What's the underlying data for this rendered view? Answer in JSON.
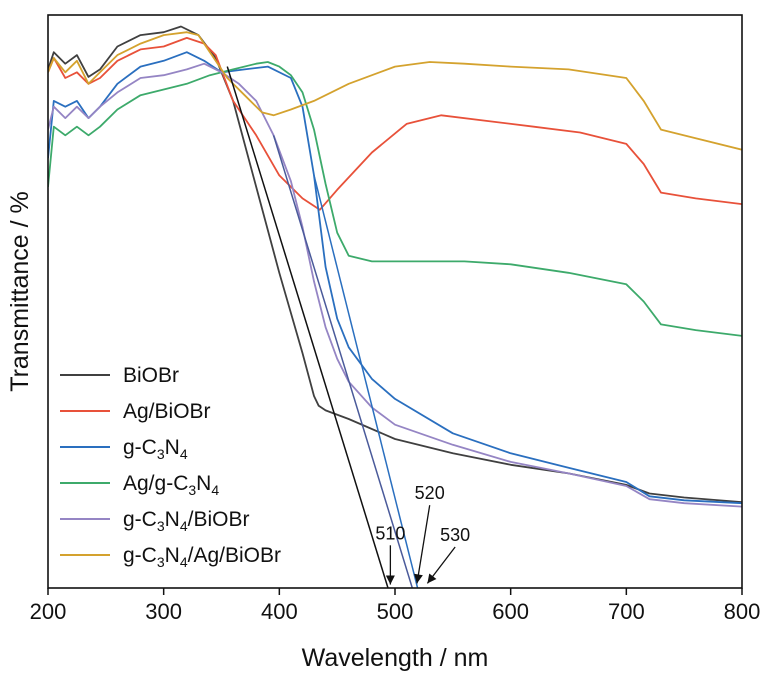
{
  "chart_data": {
    "type": "line",
    "title": "",
    "xlabel": "Wavelength / nm",
    "ylabel": "Transmittance / %",
    "xlim": [
      200,
      800
    ],
    "ylim": [
      0,
      100
    ],
    "xticks": [
      200,
      300,
      400,
      500,
      600,
      700,
      800
    ],
    "yticks_shown": false,
    "grid": false,
    "legend_position": "bottom-left",
    "series": [
      {
        "name": "BiOBr",
        "color": "#404040",
        "x": [
          200,
          205,
          215,
          225,
          235,
          245,
          260,
          280,
          300,
          315,
          330,
          345,
          360,
          380,
          400,
          420,
          430,
          434,
          440,
          460,
          500,
          550,
          600,
          650,
          700,
          720,
          750,
          800
        ],
        "y": [
          90.5,
          93.5,
          91.5,
          93.0,
          89.2,
          90.5,
          94.5,
          96.5,
          97.0,
          98.0,
          96.5,
          92.5,
          85.0,
          70.0,
          55.0,
          41.0,
          33.5,
          31.8,
          31.0,
          29.5,
          26.0,
          23.5,
          21.5,
          20.0,
          18.0,
          16.5,
          15.8,
          15.0
        ]
      },
      {
        "name": "Ag/BiOBr",
        "color": "#e8513a",
        "x": [
          200,
          205,
          215,
          225,
          235,
          245,
          260,
          280,
          300,
          320,
          335,
          345,
          360,
          380,
          400,
          420,
          435,
          450,
          480,
          510,
          540,
          580,
          620,
          660,
          700,
          715,
          730,
          760,
          800
        ],
        "y": [
          90.0,
          92.5,
          89.0,
          90.0,
          88.0,
          89.0,
          92.0,
          94.0,
          94.5,
          96.0,
          95.0,
          93.0,
          85.0,
          79.0,
          72.0,
          68.0,
          66.0,
          69.5,
          76.0,
          81.0,
          82.5,
          81.5,
          80.5,
          79.5,
          77.5,
          74.0,
          69.0,
          68.0,
          67.0
        ]
      },
      {
        "name": "g-C3N4",
        "color": "#2a6fbf",
        "x": [
          200,
          205,
          215,
          225,
          235,
          245,
          260,
          280,
          300,
          320,
          335,
          350,
          370,
          390,
          410,
          420,
          430,
          440,
          450,
          460,
          480,
          500,
          550,
          600,
          650,
          700,
          720,
          750,
          800
        ],
        "y": [
          75.0,
          85.0,
          84.0,
          85.0,
          82.0,
          84.0,
          88.0,
          91.0,
          92.0,
          93.5,
          92.0,
          90.0,
          90.5,
          91.0,
          89.0,
          84.0,
          72.0,
          56.0,
          47.0,
          42.0,
          36.5,
          33.0,
          27.0,
          23.5,
          21.0,
          18.5,
          16.0,
          15.3,
          14.8
        ]
      },
      {
        "name": "Ag/g-C3N4",
        "color": "#3daa6b",
        "x": [
          200,
          205,
          215,
          225,
          235,
          245,
          260,
          280,
          300,
          320,
          340,
          360,
          380,
          390,
          400,
          410,
          420,
          430,
          440,
          450,
          460,
          480,
          520,
          560,
          600,
          650,
          700,
          715,
          730,
          760,
          800
        ],
        "y": [
          70.0,
          80.5,
          79.0,
          80.5,
          79.0,
          80.5,
          83.5,
          86.0,
          87.0,
          88.0,
          89.5,
          90.5,
          91.5,
          91.8,
          91.0,
          89.5,
          86.5,
          80.0,
          70.5,
          62.0,
          58.0,
          57.0,
          57.0,
          57.0,
          56.5,
          55.0,
          53.0,
          50.0,
          46.0,
          45.0,
          44.0
        ]
      },
      {
        "name": "g-C3N4/BiOBr",
        "color": "#9585c4",
        "x": [
          200,
          205,
          215,
          225,
          235,
          245,
          260,
          280,
          300,
          320,
          335,
          350,
          365,
          380,
          395,
          410,
          420,
          430,
          440,
          450,
          460,
          480,
          500,
          550,
          600,
          650,
          700,
          720,
          750,
          800
        ],
        "y": [
          80.0,
          84.0,
          82.0,
          84.0,
          82.0,
          84.0,
          86.5,
          89.0,
          89.5,
          90.5,
          91.5,
          90.0,
          88.0,
          85.0,
          79.0,
          71.0,
          63.0,
          53.5,
          45.5,
          40.0,
          36.0,
          31.5,
          28.5,
          25.0,
          22.0,
          20.0,
          17.8,
          15.5,
          14.8,
          14.2
        ]
      },
      {
        "name": "g-C3N4/Ag/BiOBr",
        "color": "#d4a22e",
        "x": [
          200,
          205,
          215,
          225,
          235,
          245,
          260,
          280,
          300,
          320,
          330,
          340,
          355,
          370,
          385,
          395,
          410,
          430,
          460,
          500,
          530,
          560,
          600,
          650,
          700,
          715,
          730,
          760,
          800
        ],
        "y": [
          90.0,
          92.5,
          90.0,
          92.0,
          88.0,
          90.0,
          93.0,
          95.0,
          96.5,
          97.0,
          96.5,
          93.5,
          89.0,
          86.0,
          83.0,
          82.5,
          83.5,
          85.0,
          88.0,
          91.0,
          91.8,
          91.5,
          91.0,
          90.5,
          89.0,
          85.0,
          80.0,
          78.5,
          76.5
        ]
      }
    ],
    "tangent_lines": [
      {
        "series": "BiOBr",
        "from": [
          355,
          91.0
        ],
        "to": [
          497,
          -2.0
        ],
        "color": "#111111"
      },
      {
        "series": "g-C3N4/BiOBr",
        "from": [
          395,
          79.0
        ],
        "to": [
          518,
          -2.0
        ],
        "color": "#4a5a9a"
      },
      {
        "series": "g-C3N4",
        "from": [
          430,
          72.0
        ],
        "to": [
          522,
          -2.0
        ],
        "color": "#2a6fbf"
      }
    ],
    "annotations": [
      {
        "text": "510",
        "label_at": [
          496,
          8.5
        ],
        "arrow_to": [
          496,
          0.6
        ]
      },
      {
        "text": "520",
        "label_at": [
          530,
          15.5
        ],
        "arrow_to": [
          519,
          0.8
        ]
      },
      {
        "text": "530",
        "label_at": [
          552,
          8.2
        ],
        "arrow_to": [
          528,
          0.8
        ]
      }
    ]
  },
  "legend": [
    {
      "label": "BiOBr",
      "parts": [
        {
          "t": "BiOBr"
        }
      ]
    },
    {
      "label": "Ag/BiOBr",
      "parts": [
        {
          "t": "Ag/BiOBr"
        }
      ]
    },
    {
      "label": "g-C3N4",
      "parts": [
        {
          "t": "g-C"
        },
        {
          "t": "3",
          "sub": true
        },
        {
          "t": "N"
        },
        {
          "t": "4",
          "sub": true
        }
      ]
    },
    {
      "label": "Ag/g-C3N4",
      "parts": [
        {
          "t": "Ag/g-C"
        },
        {
          "t": "3",
          "sub": true
        },
        {
          "t": "N"
        },
        {
          "t": "4",
          "sub": true
        }
      ]
    },
    {
      "label": "g-C3N4/BiOBr",
      "parts": [
        {
          "t": "g-C"
        },
        {
          "t": "3",
          "sub": true
        },
        {
          "t": "N"
        },
        {
          "t": "4",
          "sub": true
        },
        {
          "t": "/BiOBr"
        }
      ]
    },
    {
      "label": "g-C3N4/Ag/BiOBr",
      "parts": [
        {
          "t": "g-C"
        },
        {
          "t": "3",
          "sub": true
        },
        {
          "t": "N"
        },
        {
          "t": "4",
          "sub": true
        },
        {
          "t": "/Ag/BiOBr"
        }
      ]
    }
  ]
}
